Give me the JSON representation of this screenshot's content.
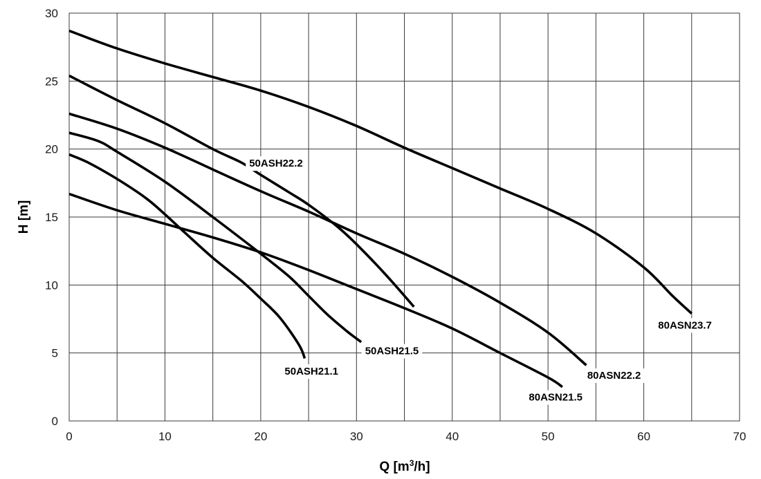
{
  "chart_data": {
    "type": "line",
    "xlabel": "Q [m",
    "xlabel_sup": "3",
    "xlabel_end": "/h]",
    "ylabel": "H [m]",
    "xlim": [
      0,
      70
    ],
    "ylim": [
      0,
      30
    ],
    "x_ticks": [
      0,
      10,
      20,
      30,
      40,
      50,
      60,
      70
    ],
    "y_ticks": [
      0,
      5,
      10,
      15,
      20,
      25,
      30
    ],
    "x_grid_step": 5,
    "y_grid_step": 5,
    "grid": true,
    "line_color": "#000000",
    "series": [
      {
        "name": "50ASH21.1",
        "points": [
          [
            0,
            19.6
          ],
          [
            2,
            19
          ],
          [
            5,
            17.8
          ],
          [
            8,
            16.4
          ],
          [
            10,
            15.2
          ],
          [
            12,
            13.9
          ],
          [
            15,
            12
          ],
          [
            18,
            10.3
          ],
          [
            20,
            9
          ],
          [
            22,
            7.6
          ],
          [
            24,
            5.6
          ],
          [
            24.6,
            4.6
          ]
        ]
      },
      {
        "name": "50ASH21.5",
        "points": [
          [
            0,
            21.2
          ],
          [
            3,
            20.6
          ],
          [
            5,
            19.8
          ],
          [
            10,
            17.6
          ],
          [
            15,
            15
          ],
          [
            20,
            12.3
          ],
          [
            23,
            10.6
          ],
          [
            25,
            9.2
          ],
          [
            27,
            7.8
          ],
          [
            29,
            6.6
          ],
          [
            30.5,
            5.8
          ]
        ]
      },
      {
        "name": "50ASH22.2",
        "points": [
          [
            0,
            25.4
          ],
          [
            5,
            23.6
          ],
          [
            10,
            21.9
          ],
          [
            15,
            20
          ],
          [
            18,
            19
          ],
          [
            20,
            18.1
          ],
          [
            23,
            16.8
          ],
          [
            25,
            15.9
          ],
          [
            28,
            14.3
          ],
          [
            30,
            13
          ],
          [
            33,
            10.8
          ],
          [
            36,
            8.4
          ]
        ]
      },
      {
        "name": "80ASN21.5",
        "points": [
          [
            0,
            16.7
          ],
          [
            5,
            15.5
          ],
          [
            10,
            14.5
          ],
          [
            15,
            13.5
          ],
          [
            20,
            12.4
          ],
          [
            25,
            11.1
          ],
          [
            30,
            9.7
          ],
          [
            35,
            8.3
          ],
          [
            40,
            6.8
          ],
          [
            45,
            5
          ],
          [
            50,
            3.2
          ],
          [
            51.5,
            2.5
          ]
        ]
      },
      {
        "name": "80ASN22.2",
        "points": [
          [
            0,
            22.6
          ],
          [
            5,
            21.5
          ],
          [
            10,
            20.1
          ],
          [
            15,
            18.5
          ],
          [
            20,
            16.9
          ],
          [
            25,
            15.4
          ],
          [
            30,
            13.8
          ],
          [
            35,
            12.3
          ],
          [
            40,
            10.6
          ],
          [
            45,
            8.7
          ],
          [
            50,
            6.5
          ],
          [
            54,
            4.1
          ]
        ]
      },
      {
        "name": "80ASN23.7",
        "points": [
          [
            0,
            28.7
          ],
          [
            5,
            27.4
          ],
          [
            10,
            26.3
          ],
          [
            15,
            25.3
          ],
          [
            20,
            24.3
          ],
          [
            25,
            23.1
          ],
          [
            30,
            21.7
          ],
          [
            35,
            20.1
          ],
          [
            40,
            18.6
          ],
          [
            45,
            17.1
          ],
          [
            50,
            15.6
          ],
          [
            55,
            13.8
          ],
          [
            60,
            11.3
          ],
          [
            63,
            9.2
          ],
          [
            65,
            7.9
          ]
        ]
      }
    ],
    "annotations": [
      {
        "text": "50ASH22.2",
        "x": 21.6,
        "y": 18.7,
        "anchor": "middle"
      },
      {
        "text": "50ASH21.1",
        "x": 28.1,
        "y": 3.4,
        "anchor": "end"
      },
      {
        "text": "50ASH21.5",
        "x": 36.5,
        "y": 4.9,
        "anchor": "end"
      },
      {
        "text": "80ASN21.5",
        "x": 53.6,
        "y": 1.5,
        "anchor": "end"
      },
      {
        "text": "80ASN22.2",
        "x": 59.7,
        "y": 3.1,
        "anchor": "end"
      },
      {
        "text": "80ASN23.7",
        "x": 67.1,
        "y": 6.8,
        "anchor": "end"
      }
    ]
  }
}
